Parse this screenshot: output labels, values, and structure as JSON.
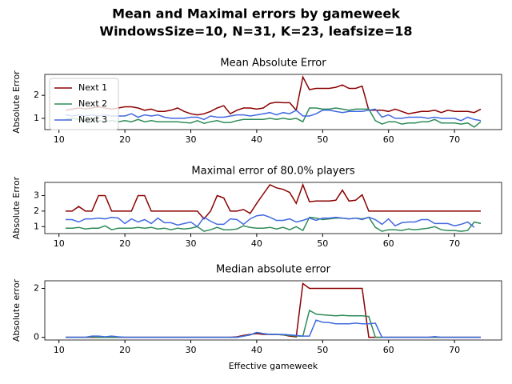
{
  "title": "Mean and Maximal errors by gameweek",
  "subtitle": "WindowsSize=10, N=31, K=23, leafsize=18",
  "chart_data": [
    {
      "type": "line",
      "title": "Mean Absolute Error",
      "y_label": "Absolute Error",
      "legend": "upper left",
      "x": [
        11,
        12,
        13,
        14,
        15,
        16,
        17,
        18,
        19,
        20,
        21,
        22,
        23,
        24,
        25,
        26,
        27,
        28,
        29,
        30,
        31,
        32,
        33,
        34,
        35,
        36,
        37,
        38,
        39,
        40,
        41,
        42,
        43,
        44,
        45,
        46,
        47,
        48,
        49,
        50,
        51,
        52,
        53,
        54,
        55,
        56,
        57,
        58,
        59,
        60,
        61,
        62,
        63,
        64,
        65,
        66,
        67,
        68,
        69,
        70,
        71,
        72,
        73,
        74
      ],
      "xlim": [
        7.85,
        77.15
      ],
      "xticks": [
        10,
        20,
        30,
        40,
        50,
        60,
        70
      ],
      "ylim": [
        0.51,
        2.91
      ],
      "yticks": [
        1,
        2
      ],
      "series": [
        {
          "name": "Next 1",
          "color": "#8b0000",
          "values": [
            1.35,
            1.4,
            1.45,
            1.4,
            1.45,
            1.5,
            1.45,
            1.4,
            1.45,
            1.5,
            1.5,
            1.45,
            1.35,
            1.4,
            1.3,
            1.3,
            1.35,
            1.45,
            1.3,
            1.2,
            1.15,
            1.2,
            1.3,
            1.45,
            1.55,
            1.2,
            1.35,
            1.45,
            1.45,
            1.4,
            1.45,
            1.65,
            1.7,
            1.68,
            1.68,
            1.35,
            2.8,
            2.25,
            2.3,
            2.3,
            2.3,
            2.35,
            2.45,
            2.3,
            2.3,
            2.4,
            1.35,
            1.35,
            1.35,
            1.3,
            1.4,
            1.3,
            1.2,
            1.25,
            1.3,
            1.3,
            1.35,
            1.25,
            1.35,
            1.3,
            1.3,
            1.3,
            1.25,
            1.4
          ]
        },
        {
          "name": "Next 2",
          "color": "#2e8b57",
          "values": [
            0.95,
            1.0,
            0.95,
            0.9,
            0.95,
            0.9,
            0.85,
            0.9,
            0.85,
            0.9,
            0.85,
            0.95,
            0.85,
            0.9,
            0.85,
            0.85,
            0.85,
            0.85,
            0.82,
            0.8,
            0.9,
            0.78,
            0.85,
            0.9,
            0.82,
            0.82,
            0.9,
            0.95,
            0.95,
            0.95,
            0.95,
            1.0,
            0.95,
            1.0,
            0.95,
            1.0,
            0.85,
            1.45,
            1.45,
            1.4,
            1.4,
            1.45,
            1.4,
            1.35,
            1.4,
            1.4,
            1.4,
            0.9,
            0.75,
            0.85,
            0.85,
            0.75,
            0.8,
            0.8,
            0.85,
            0.85,
            0.95,
            0.8,
            0.8,
            0.8,
            0.75,
            0.8,
            0.62,
            0.85
          ]
        },
        {
          "name": "Next 3",
          "color": "#4169e1",
          "values": [
            1.15,
            1.1,
            1.15,
            1.1,
            1.15,
            1.1,
            1.15,
            1.1,
            1.1,
            1.1,
            1.2,
            1.05,
            1.15,
            1.1,
            1.15,
            1.05,
            1.0,
            1.0,
            1.0,
            1.05,
            1.05,
            0.95,
            1.1,
            1.05,
            1.05,
            1.1,
            1.15,
            1.15,
            1.1,
            1.15,
            1.2,
            1.25,
            1.15,
            1.25,
            1.2,
            1.35,
            1.1,
            1.1,
            1.2,
            1.35,
            1.35,
            1.3,
            1.25,
            1.3,
            1.3,
            1.3,
            1.35,
            1.4,
            1.05,
            1.15,
            1.0,
            1.0,
            1.05,
            1.05,
            1.05,
            1.0,
            1.05,
            1.0,
            1.0,
            1.0,
            0.9,
            1.05,
            0.95,
            0.9
          ]
        }
      ]
    },
    {
      "type": "line",
      "title": "Maximal error of 80.0% players",
      "y_label": "Absolute Error",
      "x": [
        11,
        12,
        13,
        14,
        15,
        16,
        17,
        18,
        19,
        20,
        21,
        22,
        23,
        24,
        25,
        26,
        27,
        28,
        29,
        30,
        31,
        32,
        33,
        34,
        35,
        36,
        37,
        38,
        39,
        40,
        41,
        42,
        43,
        44,
        45,
        46,
        47,
        48,
        49,
        50,
        51,
        52,
        53,
        54,
        55,
        56,
        57,
        58,
        59,
        60,
        61,
        62,
        63,
        64,
        65,
        66,
        67,
        68,
        69,
        70,
        71,
        72,
        73,
        74
      ],
      "xlim": [
        7.85,
        77.15
      ],
      "xticks": [
        10,
        20,
        30,
        40,
        50,
        60,
        70
      ],
      "ylim": [
        0.55,
        3.85
      ],
      "yticks": [
        1,
        2,
        3
      ],
      "series": [
        {
          "color": "#8b0000",
          "values": [
            2,
            2,
            2.3,
            2,
            2,
            3,
            3,
            2,
            2,
            2,
            2,
            3,
            3,
            2,
            2,
            2,
            2,
            2,
            2,
            2,
            2,
            1.5,
            2,
            3,
            2.85,
            2,
            2,
            2.1,
            1.85,
            2.5,
            3.1,
            3.7,
            3.5,
            3.4,
            3.2,
            2.5,
            3.7,
            2.6,
            2.65,
            2.65,
            2.65,
            2.7,
            3.35,
            2.65,
            2.7,
            3.05,
            2,
            2,
            2,
            2,
            2,
            2,
            2,
            2,
            2,
            2,
            2,
            2,
            2,
            2,
            2,
            2,
            2,
            2
          ]
        },
        {
          "color": "#2e8b57",
          "values": [
            0.9,
            0.9,
            0.95,
            0.85,
            0.9,
            0.9,
            1.05,
            0.8,
            0.9,
            0.9,
            0.9,
            0.95,
            0.9,
            0.95,
            0.85,
            0.9,
            0.8,
            0.9,
            0.85,
            0.9,
            1.0,
            0.7,
            0.8,
            0.95,
            0.8,
            0.8,
            0.85,
            1.05,
            0.95,
            0.9,
            0.9,
            0.95,
            0.85,
            0.95,
            0.8,
            1.0,
            0.75,
            1.6,
            1.55,
            1.45,
            1.5,
            1.55,
            1.55,
            1.5,
            1.55,
            1.5,
            1.6,
            0.95,
            0.7,
            0.8,
            0.8,
            0.75,
            0.85,
            0.8,
            0.85,
            0.9,
            1.0,
            0.8,
            0.75,
            0.75,
            0.7,
            0.75,
            1.3,
            1.2
          ]
        },
        {
          "color": "#4169e1",
          "values": [
            1.45,
            1.45,
            1.3,
            1.5,
            1.5,
            1.55,
            1.5,
            1.6,
            1.55,
            1.2,
            1.5,
            1.3,
            1.45,
            1.2,
            1.55,
            1.25,
            1.25,
            1.1,
            1.2,
            1.3,
            1.0,
            1.6,
            1.35,
            1.15,
            1.15,
            1.5,
            1.45,
            1.15,
            1.5,
            1.7,
            1.75,
            1.6,
            1.4,
            1.4,
            1.5,
            1.3,
            1.4,
            1.55,
            1.4,
            1.55,
            1.55,
            1.6,
            1.55,
            1.5,
            1.55,
            1.45,
            1.6,
            1.45,
            1.15,
            1.5,
            1.05,
            1.25,
            1.3,
            1.3,
            1.45,
            1.45,
            1.2,
            1.2,
            1.2,
            1.05,
            1.15,
            1.3,
            0.95,
            null
          ]
        }
      ]
    },
    {
      "type": "line",
      "title": "Median absolute error",
      "y_label": "Absolute error",
      "x_label": "Effective gameweek",
      "x": [
        11,
        12,
        13,
        14,
        15,
        16,
        17,
        18,
        19,
        20,
        21,
        22,
        23,
        24,
        25,
        26,
        27,
        28,
        29,
        30,
        31,
        32,
        33,
        34,
        35,
        36,
        37,
        38,
        39,
        40,
        41,
        42,
        43,
        44,
        45,
        46,
        47,
        48,
        49,
        50,
        51,
        52,
        53,
        54,
        55,
        56,
        57,
        58,
        59,
        60,
        61,
        62,
        63,
        64,
        65,
        66,
        67,
        68,
        69,
        70,
        71,
        72,
        73,
        74
      ],
      "xlim": [
        7.85,
        77.15
      ],
      "xticks": [
        10,
        20,
        30,
        40,
        50,
        60,
        70
      ],
      "ylim": [
        -0.11,
        2.31
      ],
      "yticks": [
        0,
        2
      ],
      "series": [
        {
          "color": "#8b0000",
          "values": [
            0,
            0,
            0,
            0,
            0,
            0,
            0,
            0,
            0,
            0,
            0,
            0,
            0,
            0,
            0,
            0,
            0,
            0,
            0,
            0,
            0,
            0,
            0,
            0,
            0,
            0,
            0.02,
            0.08,
            0.12,
            0.15,
            0.12,
            0.12,
            0.12,
            0.1,
            0.05,
            0.02,
            2.2,
            2,
            2,
            2,
            2,
            2,
            2,
            2,
            2,
            2,
            0,
            0,
            0,
            0,
            0,
            0,
            0,
            0,
            0,
            0,
            0,
            0,
            0,
            0,
            0,
            0,
            0,
            0
          ]
        },
        {
          "color": "#2e8b57",
          "values": [
            0,
            0,
            0,
            0,
            0.02,
            0,
            0,
            0,
            0,
            0,
            0,
            0,
            0,
            0,
            0,
            0,
            0,
            0,
            0,
            0,
            0,
            0,
            0,
            0,
            0,
            0,
            0,
            0.05,
            0.1,
            0.2,
            0.15,
            0.12,
            0.12,
            0.1,
            0.08,
            0.05,
            0.05,
            1.1,
            0.95,
            0.92,
            0.9,
            0.88,
            0.9,
            0.88,
            0.88,
            0.88,
            0.85,
            0,
            0,
            0,
            0,
            0,
            0,
            0,
            0,
            0,
            0,
            0,
            0,
            0,
            0,
            0,
            0,
            0
          ]
        },
        {
          "color": "#4169e1",
          "values": [
            0,
            0,
            0,
            0,
            0.05,
            0.05,
            0.02,
            0.05,
            0.02,
            0,
            0,
            0,
            0,
            0,
            0,
            0,
            0,
            0,
            0,
            0,
            0,
            0,
            0,
            0,
            0,
            0,
            0,
            0.05,
            0.1,
            0.2,
            0.15,
            0.12,
            0.12,
            0.12,
            0.1,
            0.08,
            0.05,
            0.05,
            0.7,
            0.62,
            0.6,
            0.55,
            0.55,
            0.55,
            0.58,
            0.55,
            0.55,
            0.58,
            0,
            0,
            0,
            0,
            0,
            0,
            0,
            0,
            0.03,
            0,
            0,
            0,
            0,
            0,
            0,
            0
          ]
        }
      ]
    }
  ]
}
